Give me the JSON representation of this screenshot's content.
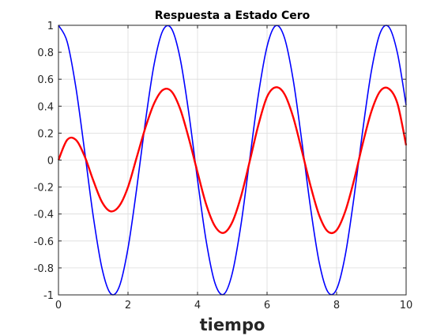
{
  "chart_data": {
    "type": "line",
    "title": "Respuesta a Estado Cero",
    "xlabel": "tiempo",
    "ylabel": "",
    "xlim": [
      0,
      10
    ],
    "ylim": [
      -1,
      1
    ],
    "grid": true,
    "x_ticks": [
      0,
      2,
      4,
      6,
      8,
      10
    ],
    "x_tick_labels": [
      "0",
      "2",
      "4",
      "6",
      "8",
      "10"
    ],
    "y_ticks": [
      1,
      0.8,
      0.6,
      0.4,
      0.2,
      0,
      -0.2,
      -0.4,
      -0.6,
      -0.8,
      -1
    ],
    "y_tick_labels": [
      "1",
      "0.8",
      "0.6",
      "0.4",
      "0.2",
      "0",
      "-0.2",
      "-0.4",
      "-0.6",
      "-0.8",
      "-1"
    ],
    "series": [
      {
        "color": "#0000ff",
        "x": [
          0,
          0.25,
          0.5,
          0.75,
          1.0,
          1.25,
          1.5,
          1.75,
          2.0,
          2.25,
          2.5,
          2.75,
          3.0,
          3.25,
          3.5,
          3.75,
          4.0,
          4.25,
          4.5,
          4.75,
          5.0,
          5.25,
          5.5,
          5.75,
          6.0,
          6.25,
          6.5,
          6.75,
          7.0,
          7.25,
          7.5,
          7.75,
          8.0,
          8.25,
          8.5,
          8.75,
          9.0,
          9.25,
          9.5,
          9.75,
          10.0
        ],
        "values": [
          1.0,
          0.878,
          0.54,
          0.071,
          -0.416,
          -0.801,
          -0.99,
          -0.938,
          -0.654,
          -0.211,
          0.284,
          0.709,
          0.96,
          0.976,
          0.754,
          0.347,
          -0.146,
          -0.602,
          -0.911,
          -0.996,
          -0.839,
          -0.479,
          0.004,
          0.484,
          0.843,
          0.997,
          0.908,
          0.598,
          0.14,
          -0.352,
          -0.759,
          -0.978,
          -0.958,
          -0.705,
          -0.278,
          0.217,
          0.659,
          0.941,
          0.989,
          0.794,
          0.408
        ]
      },
      {
        "color": "#ff0000",
        "x": [
          0,
          0.25,
          0.5,
          0.75,
          1.0,
          1.25,
          1.5,
          1.75,
          2.0,
          2.25,
          2.5,
          2.75,
          3.0,
          3.25,
          3.5,
          3.75,
          4.0,
          4.25,
          4.5,
          4.75,
          5.0,
          5.25,
          5.5,
          5.75,
          6.0,
          6.25,
          6.5,
          6.75,
          7.0,
          7.25,
          7.5,
          7.75,
          8.0,
          8.25,
          8.5,
          8.75,
          9.0,
          9.25,
          9.5,
          9.75,
          10.0
        ],
        "values": [
          0.0,
          0.15,
          0.15,
          0.03,
          -0.15,
          -0.31,
          -0.38,
          -0.34,
          -0.2,
          0.02,
          0.24,
          0.42,
          0.52,
          0.51,
          0.38,
          0.16,
          -0.09,
          -0.33,
          -0.49,
          -0.54,
          -0.46,
          -0.27,
          -0.01,
          0.26,
          0.47,
          0.54,
          0.49,
          0.32,
          0.07,
          -0.19,
          -0.41,
          -0.53,
          -0.52,
          -0.38,
          -0.15,
          0.12,
          0.36,
          0.51,
          0.53,
          0.42,
          0.11
        ]
      }
    ]
  }
}
